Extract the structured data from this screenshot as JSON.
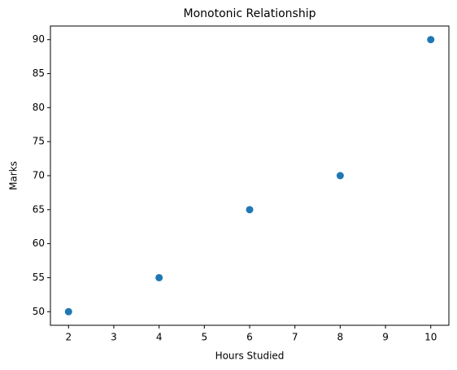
{
  "chart_data": {
    "type": "scatter",
    "title": "Monotonic Relationship",
    "x_label": "Hours Studied",
    "y_label": "Marks",
    "series": [
      {
        "x": [
          2,
          4,
          6,
          8,
          10
        ],
        "values": [
          50,
          55,
          65,
          70,
          90
        ],
        "color": "#1f77b4"
      }
    ],
    "xlim": [
      1.6,
      10.4
    ],
    "ylim": [
      48,
      92
    ],
    "xticks": [
      2,
      3,
      4,
      5,
      6,
      7,
      8,
      9,
      10
    ],
    "yticks": [
      50,
      55,
      60,
      65,
      70,
      75,
      80,
      85,
      90
    ],
    "grid": false
  }
}
